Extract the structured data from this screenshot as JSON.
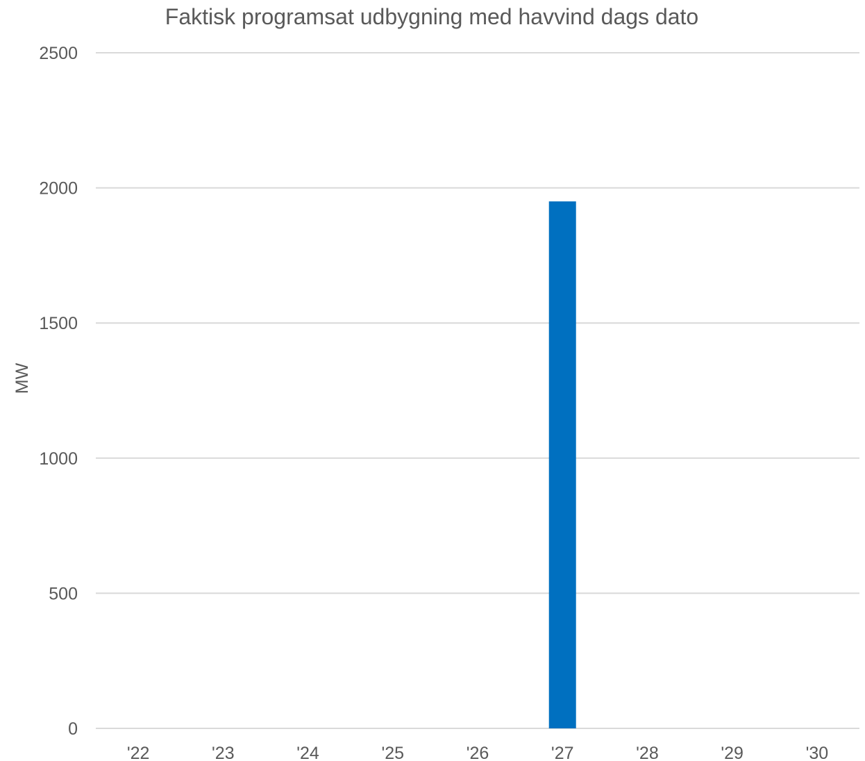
{
  "chart_data": {
    "type": "bar",
    "title": "Faktisk programsat udbygning med havvind dags dato",
    "xlabel": "",
    "ylabel": "MW",
    "categories": [
      "'22",
      "'23",
      "'24",
      "'25",
      "'26",
      "'27",
      "'28",
      "'29",
      "'30"
    ],
    "values": [
      0,
      0,
      0,
      0,
      0,
      1950,
      0,
      0,
      0
    ],
    "ylim": [
      0,
      2500
    ],
    "yticks": [
      0,
      500,
      1000,
      1500,
      2000,
      2500
    ],
    "grid": true,
    "legend": "none",
    "colors": {
      "bar": "#0070C0",
      "gridline": "#D9D9D9",
      "text": "#595959"
    }
  }
}
